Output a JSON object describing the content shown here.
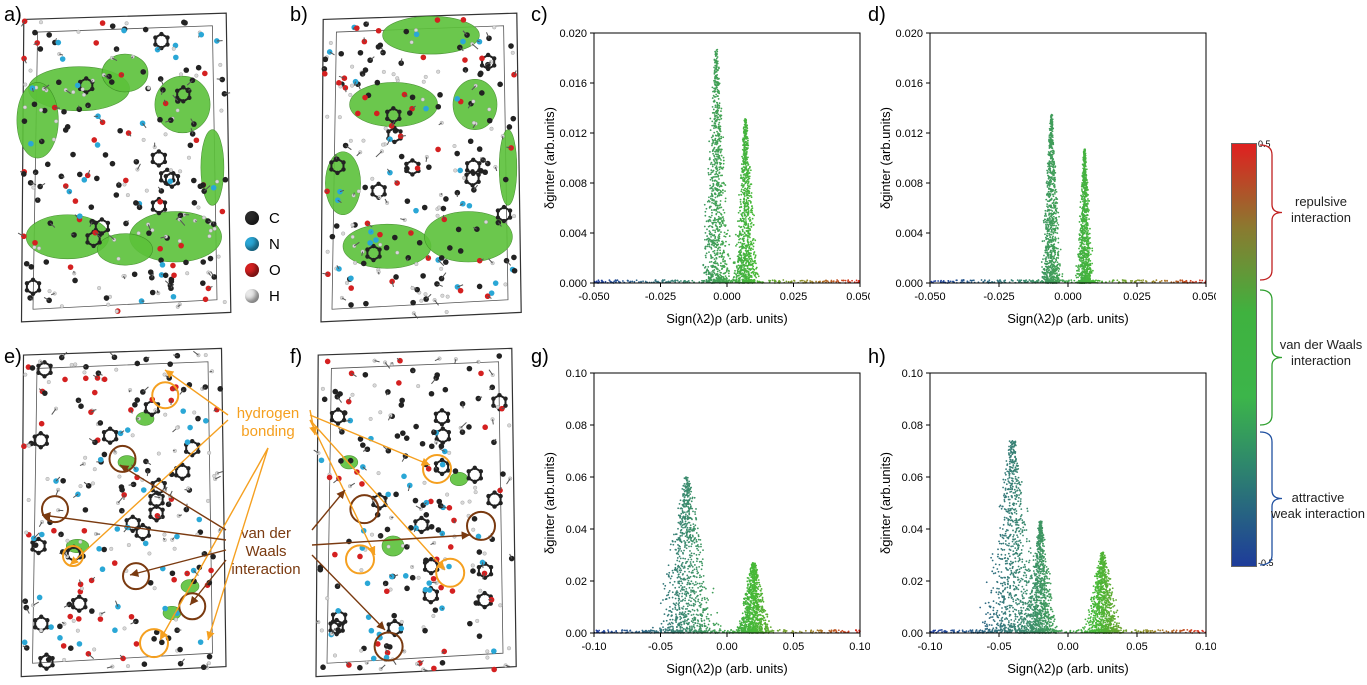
{
  "panels": {
    "a": "a)",
    "b": "b)",
    "c": "c)",
    "d": "d)",
    "e": "e)",
    "f": "f)",
    "g": "g)",
    "h": "h)"
  },
  "atom_legend": [
    {
      "label": "C",
      "color": "#2a2a2a"
    },
    {
      "label": "N",
      "color": "#2aa7d6"
    },
    {
      "label": "O",
      "color": "#d42020"
    },
    {
      "label": "H",
      "color": "#e8e8e8"
    }
  ],
  "annotations": {
    "hbond_line1": "hydrogen",
    "hbond_line2": "bonding",
    "vdw_line1": "van der",
    "vdw_line2": "Waals",
    "vdw_line3": "interaction",
    "hbond_color": "#f5a020",
    "vdw_color": "#7a3a10"
  },
  "colorbar": {
    "top_tick": "0.5",
    "bottom_tick": "-0.5",
    "labels": [
      {
        "lines": [
          "repulsive",
          "interaction"
        ],
        "color": "#c02020"
      },
      {
        "lines": [
          "van der Waals",
          "interaction"
        ],
        "color": "#30a030"
      },
      {
        "lines": [
          "attractive",
          "weak interaction"
        ],
        "color": "#2050a0"
      }
    ]
  },
  "chart_data": [
    {
      "panel": "c",
      "type": "scatter",
      "xlabel": "Sign(λ2)ρ (arb. units)",
      "ylabel": "δginter (arb.units)",
      "xlim": [
        -0.05,
        0.05
      ],
      "ylim": [
        0,
        0.02
      ],
      "xticks": [
        "-0.050",
        "-0.025",
        "0.000",
        "0.025",
        "0.050"
      ],
      "yticks": [
        "0.000",
        "0.004",
        "0.008",
        "0.012",
        "0.016",
        "0.020"
      ],
      "spikes": [
        {
          "center": -0.004,
          "peak": 0.0187,
          "width": 0.012
        },
        {
          "center": 0.007,
          "peak": 0.0132,
          "width": 0.01
        }
      ]
    },
    {
      "panel": "d",
      "type": "scatter",
      "xlabel": "Sign(λ2)ρ (arb. units)",
      "ylabel": "δginter (arb.units)",
      "xlim": [
        -0.05,
        0.05
      ],
      "ylim": [
        0,
        0.02
      ],
      "xticks": [
        "-0.050",
        "-0.025",
        "0.000",
        "0.025",
        "0.050"
      ],
      "yticks": [
        "0.000",
        "0.004",
        "0.008",
        "0.012",
        "0.016",
        "0.020"
      ],
      "spikes": [
        {
          "center": -0.006,
          "peak": 0.0135,
          "width": 0.008
        },
        {
          "center": 0.006,
          "peak": 0.0107,
          "width": 0.007
        }
      ]
    },
    {
      "panel": "g",
      "type": "scatter",
      "xlabel": "Sign(λ2)ρ (arb. units)",
      "ylabel": "δginter (arb.units)",
      "xlim": [
        -0.1,
        0.1
      ],
      "ylim": [
        0,
        0.1
      ],
      "xticks": [
        "-0.10",
        "-0.05",
        "0.00",
        "0.05",
        "0.10"
      ],
      "yticks": [
        "0.00",
        "0.02",
        "0.04",
        "0.06",
        "0.08",
        "0.10"
      ],
      "spikes": [
        {
          "center": -0.03,
          "peak": 0.06,
          "width": 0.05
        },
        {
          "center": 0.02,
          "peak": 0.027,
          "width": 0.03
        }
      ]
    },
    {
      "panel": "h",
      "type": "scatter",
      "xlabel": "Sign(λ2)ρ (arb. units)",
      "ylabel": "δginter (arb.units)",
      "xlim": [
        -0.1,
        0.1
      ],
      "ylim": [
        0,
        0.1
      ],
      "xticks": [
        "-0.10",
        "-0.05",
        "0.00",
        "0.05",
        "0.10"
      ],
      "yticks": [
        "0.00",
        "0.02",
        "0.04",
        "0.06",
        "0.08",
        "0.10"
      ],
      "spikes": [
        {
          "center": -0.04,
          "peak": 0.074,
          "width": 0.05
        },
        {
          "center": -0.02,
          "peak": 0.043,
          "width": 0.025
        },
        {
          "center": 0.025,
          "peak": 0.031,
          "width": 0.03
        }
      ]
    }
  ]
}
